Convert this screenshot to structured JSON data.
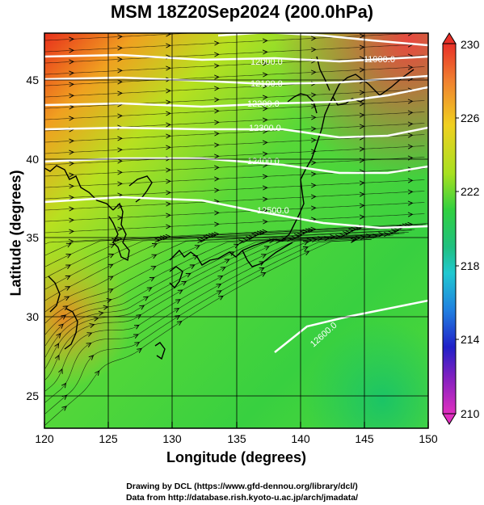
{
  "title": "MSM 18Z20Sep2024 (200.0hPa)",
  "x_axis": {
    "label": "Longitude (degrees)",
    "ticks": [
      "120",
      "125",
      "130",
      "135",
      "140",
      "145",
      "150"
    ],
    "range": [
      120,
      150
    ]
  },
  "y_axis": {
    "label": "Latitude  (degrees)",
    "ticks": [
      "25",
      "30",
      "35",
      "40",
      "45"
    ],
    "range": [
      22.5,
      47.5
    ]
  },
  "colorbar": {
    "ticks": [
      "230",
      "226",
      "222",
      "218",
      "214",
      "210"
    ],
    "range": [
      210,
      230
    ]
  },
  "contours": [
    {
      "label": "11900.0",
      "lat": 46.2
    },
    {
      "label": "12000.0",
      "lat": 45.6
    },
    {
      "label": "12100.0",
      "lat": 44.8
    },
    {
      "label": "12200.0",
      "lat": 43.6
    },
    {
      "label": "12300.0",
      "lat": 41.8
    },
    {
      "label": "12400.0",
      "lat": 39.4
    },
    {
      "label": "12500.0",
      "lat": 36.8
    },
    {
      "label": "12600.0",
      "lat": 29.5
    }
  ],
  "credits": {
    "line1": "Drawing by DCL (https://www.gfd-dennou.org/library/dcl/)",
    "line2": "Data from http://database.rish.kyoto-u.ac.jp/arch/jmadata/"
  },
  "colors": {
    "warm": "#e8301c",
    "mid": "#35d235",
    "cool": "#10c070",
    "contour": "#ffffff",
    "coast": "#000000"
  }
}
